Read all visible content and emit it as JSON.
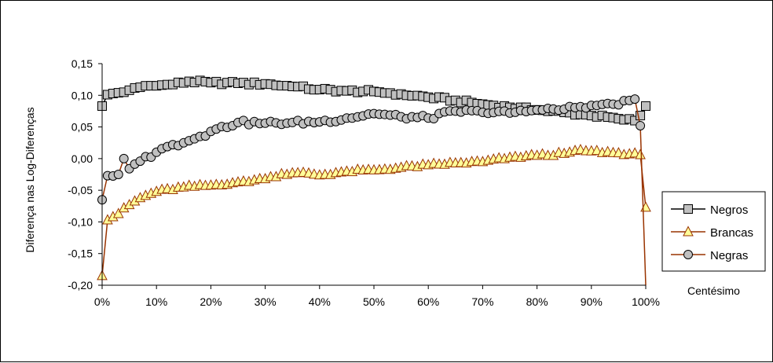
{
  "chart_data": {
    "type": "line",
    "ylabel": "Diferença nas Log-Diferenças",
    "xlabel": "Centésimo",
    "ylim": [
      -0.2,
      0.15
    ],
    "xlim": [
      0,
      100
    ],
    "yticks": [
      {
        "v": 0.15,
        "label": "0,15"
      },
      {
        "v": 0.1,
        "label": "0,10"
      },
      {
        "v": 0.05,
        "label": "0,05"
      },
      {
        "v": 0.0,
        "label": "0,00"
      },
      {
        "v": -0.05,
        "label": "-0,05"
      },
      {
        "v": -0.1,
        "label": "-0,10"
      },
      {
        "v": -0.15,
        "label": "-0,15"
      },
      {
        "v": -0.2,
        "label": "-0,20"
      }
    ],
    "xticks": [
      {
        "v": 0,
        "label": "0%"
      },
      {
        "v": 10,
        "label": "10%"
      },
      {
        "v": 20,
        "label": "20%"
      },
      {
        "v": 30,
        "label": "30%"
      },
      {
        "v": 40,
        "label": "40%"
      },
      {
        "v": 50,
        "label": "50%"
      },
      {
        "v": 60,
        "label": "60%"
      },
      {
        "v": 70,
        "label": "70%"
      },
      {
        "v": 80,
        "label": "80%"
      },
      {
        "v": 90,
        "label": "90%"
      },
      {
        "v": 100,
        "label": "100%"
      }
    ],
    "grid": false,
    "legend_position": "right",
    "series": [
      {
        "name": "Negros",
        "marker": "square",
        "line_color": "#000000",
        "marker_fill": "#c0c0c0",
        "marker_stroke": "#000000",
        "keypoints": [
          [
            0,
            0.083
          ],
          [
            1,
            0.101
          ],
          [
            3,
            0.104
          ],
          [
            5,
            0.108
          ],
          [
            8,
            0.115
          ],
          [
            10,
            0.115
          ],
          [
            13,
            0.117
          ],
          [
            16,
            0.122
          ],
          [
            20,
            0.12
          ],
          [
            25,
            0.119
          ],
          [
            30,
            0.118
          ],
          [
            35,
            0.114
          ],
          [
            40,
            0.109
          ],
          [
            45,
            0.107
          ],
          [
            50,
            0.106
          ],
          [
            55,
            0.102
          ],
          [
            60,
            0.097
          ],
          [
            65,
            0.092
          ],
          [
            70,
            0.086
          ],
          [
            75,
            0.081
          ],
          [
            80,
            0.077
          ],
          [
            85,
            0.073
          ],
          [
            90,
            0.068
          ],
          [
            95,
            0.063
          ],
          [
            98,
            0.06
          ],
          [
            99,
            0.068
          ],
          [
            100,
            0.083
          ]
        ]
      },
      {
        "name": "Brancas",
        "marker": "triangle",
        "line_color": "#993300",
        "marker_fill": "#ffff99",
        "marker_stroke": "#993300",
        "keypoints": [
          [
            0,
            -0.185
          ],
          [
            1,
            -0.097
          ],
          [
            2,
            -0.092
          ],
          [
            3,
            -0.087
          ],
          [
            5,
            -0.073
          ],
          [
            7,
            -0.062
          ],
          [
            10,
            -0.052
          ],
          [
            15,
            -0.045
          ],
          [
            20,
            -0.042
          ],
          [
            25,
            -0.037
          ],
          [
            30,
            -0.032
          ],
          [
            33,
            -0.024
          ],
          [
            38,
            -0.023
          ],
          [
            40,
            -0.026
          ],
          [
            45,
            -0.02
          ],
          [
            50,
            -0.018
          ],
          [
            55,
            -0.014
          ],
          [
            60,
            -0.01
          ],
          [
            65,
            -0.007
          ],
          [
            70,
            -0.005
          ],
          [
            75,
            0.002
          ],
          [
            80,
            0.005
          ],
          [
            85,
            0.008
          ],
          [
            88,
            0.014
          ],
          [
            90,
            0.012
          ],
          [
            95,
            0.009
          ],
          [
            99,
            0.006
          ],
          [
            100,
            -0.077
          ]
        ]
      },
      {
        "name": "Negras",
        "marker": "circle",
        "line_color": "#993300",
        "marker_fill": "#c0c0c0",
        "marker_stroke": "#000000",
        "keypoints": [
          [
            0,
            -0.065
          ],
          [
            1,
            -0.027
          ],
          [
            3,
            -0.025
          ],
          [
            4,
            0.0
          ],
          [
            5,
            -0.016
          ],
          [
            7,
            -0.004
          ],
          [
            10,
            0.01
          ],
          [
            13,
            0.022
          ],
          [
            15,
            0.025
          ],
          [
            18,
            0.035
          ],
          [
            20,
            0.043
          ],
          [
            25,
            0.057
          ],
          [
            30,
            0.056
          ],
          [
            35,
            0.057
          ],
          [
            40,
            0.058
          ],
          [
            45,
            0.064
          ],
          [
            50,
            0.071
          ],
          [
            55,
            0.066
          ],
          [
            60,
            0.064
          ],
          [
            65,
            0.075
          ],
          [
            70,
            0.073
          ],
          [
            75,
            0.072
          ],
          [
            80,
            0.077
          ],
          [
            85,
            0.078
          ],
          [
            88,
            0.082
          ],
          [
            90,
            0.084
          ],
          [
            94,
            0.086
          ],
          [
            95,
            0.085
          ],
          [
            98,
            0.094
          ],
          [
            99,
            0.052
          ],
          [
            100,
            -0.2
          ]
        ]
      }
    ],
    "legend": [
      {
        "label": "Negros",
        "series": 0
      },
      {
        "label": "Brancas",
        "series": 1
      },
      {
        "label": "Negras",
        "series": 2
      }
    ]
  }
}
